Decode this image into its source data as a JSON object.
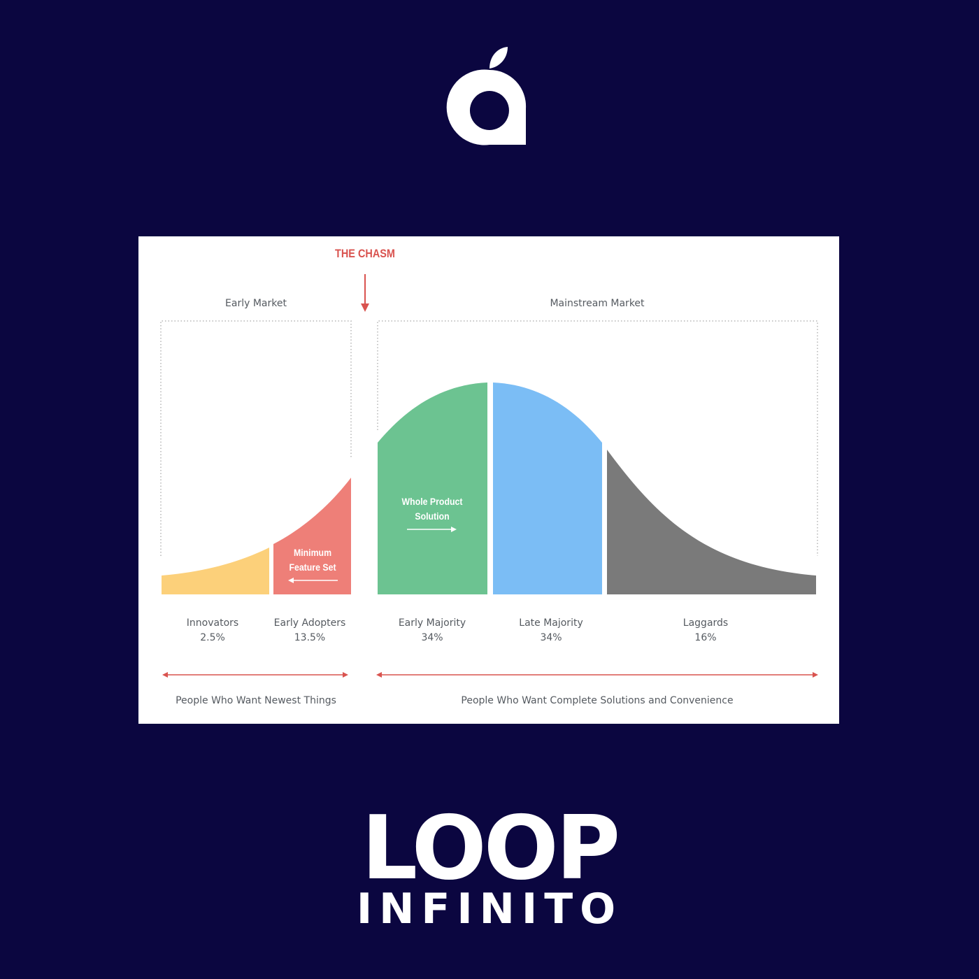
{
  "brand": {
    "top_logo_icon": "apple-leaf-logo-icon",
    "wordmark_line1": "LOOP",
    "wordmark_line2": "INFINITO"
  },
  "diagram": {
    "chasm_label": "THE CHASM",
    "early_market": "Early Market",
    "mainstream_market": "Mainstream Market",
    "minimum_feature_set": [
      "Minimum",
      "Feature Set"
    ],
    "whole_product_solution": [
      "Whole Product",
      "Solution"
    ],
    "segments": [
      {
        "name": "Innovators",
        "share": "2.5%",
        "color": "#fcd07a"
      },
      {
        "name": "Early Adopters",
        "share": "13.5%",
        "color": "#ee7f78"
      },
      {
        "name": "Early Majority",
        "share": "34%",
        "color": "#6cc391"
      },
      {
        "name": "Late Majority",
        "share": "34%",
        "color": "#7bbdf5"
      },
      {
        "name": "Laggards",
        "share": "16%",
        "color": "#7a7a7a"
      }
    ],
    "left_caption": "People Who Want Newest Things",
    "right_caption": "People Who Want Complete Solutions and Convenience",
    "accent_color": "#d9534f"
  }
}
